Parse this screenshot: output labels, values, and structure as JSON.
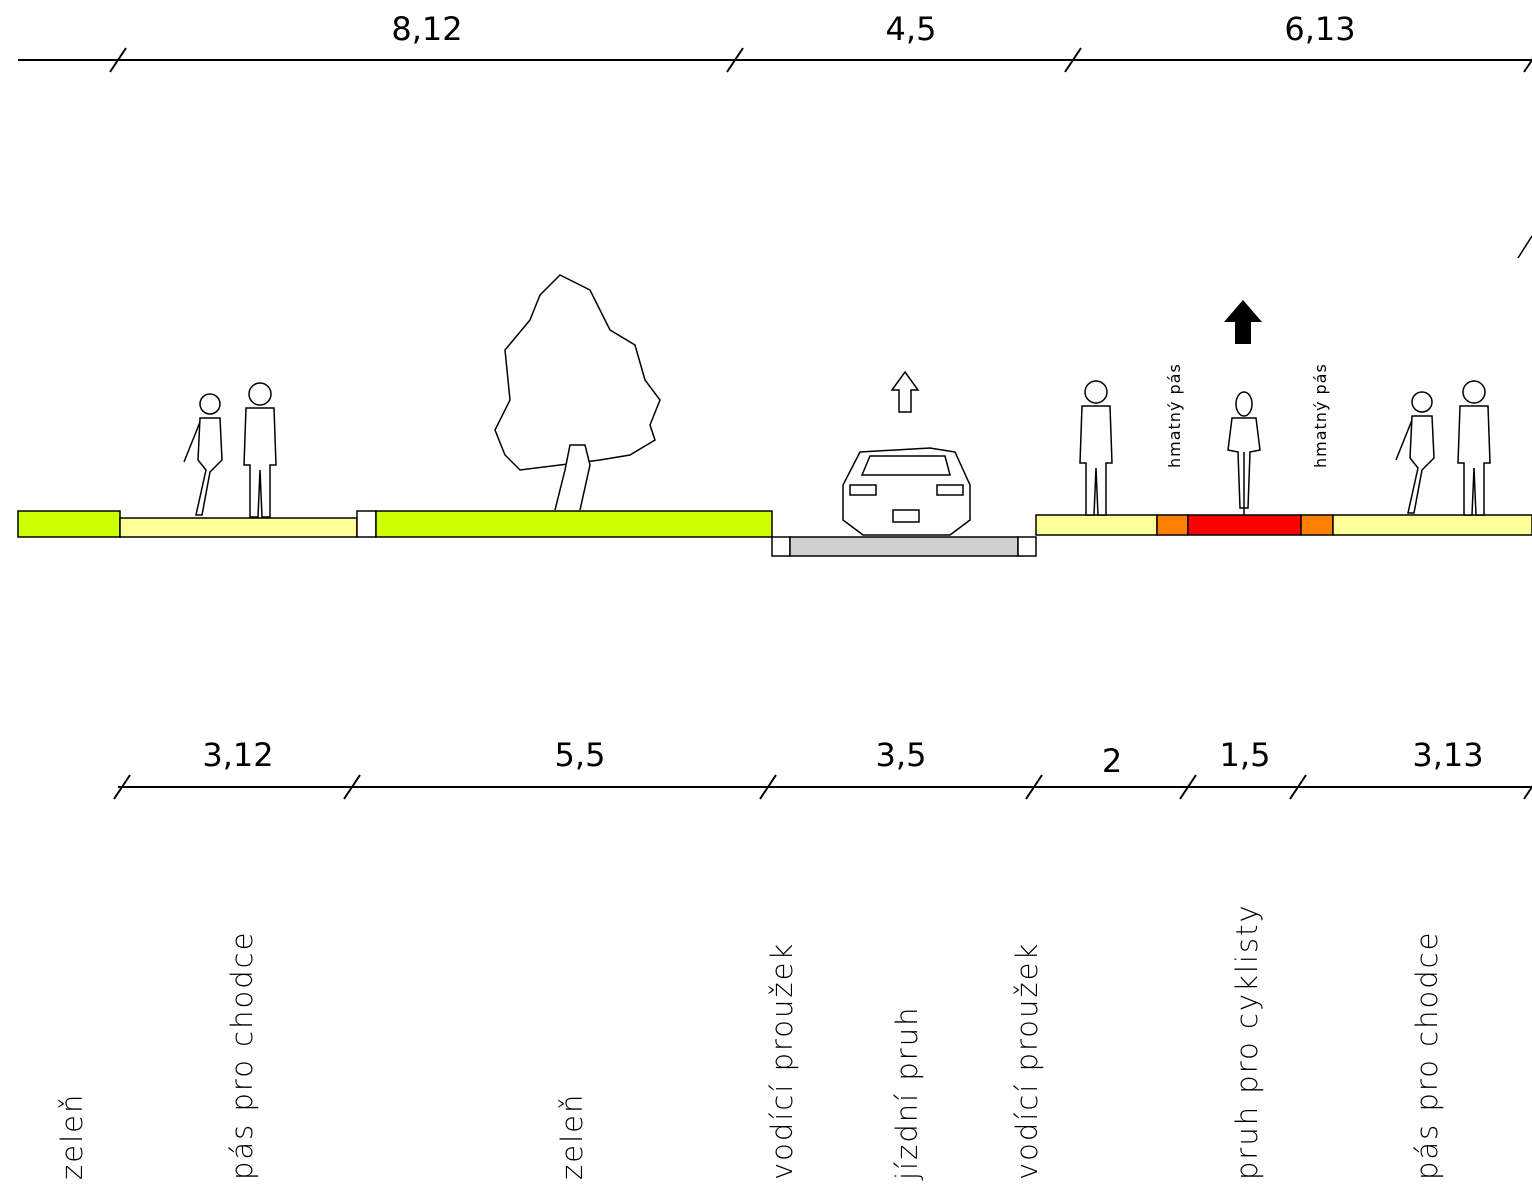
{
  "dimensions_top": [
    "8,12",
    "4,5",
    "6,13"
  ],
  "dimensions_bottom": [
    "3,12",
    "5,5",
    "3,5",
    "2",
    "1,5",
    "3,13"
  ],
  "tactile_labels": [
    "hmatný pás",
    "hmatný pás"
  ],
  "section_labels": [
    "zeleň",
    "pás pro chodce",
    "zeleň",
    "vodící proužek",
    "jízdní pruh",
    "vodící proužek",
    "pruh pro cyklisty",
    "pás pro chodce"
  ]
}
